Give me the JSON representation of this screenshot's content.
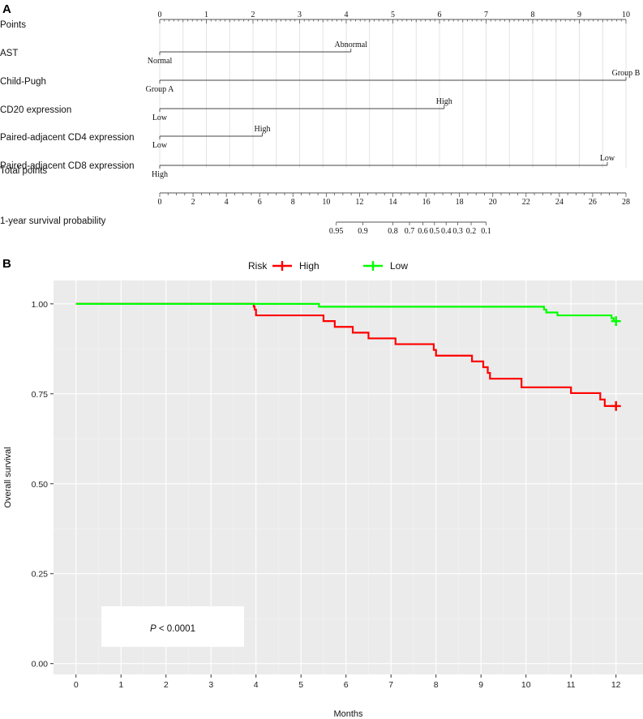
{
  "chart_data": [
    {
      "type": "nomogram",
      "panel": "A",
      "points_scale": {
        "label": "Points",
        "min": 0,
        "max": 10,
        "ticks": [
          0,
          1,
          2,
          3,
          4,
          5,
          6,
          7,
          8,
          9,
          10
        ]
      },
      "variables": [
        {
          "label": "AST",
          "levels": [
            {
              "name": "Normal",
              "points": 0
            },
            {
              "name": "Abnormal",
              "points": 4.1
            }
          ]
        },
        {
          "label": "Child-Pugh",
          "levels": [
            {
              "name": "Group A",
              "points": 0
            },
            {
              "name": "Group B",
              "points": 10
            }
          ]
        },
        {
          "label": "CD20 expression",
          "levels": [
            {
              "name": "Low",
              "points": 0
            },
            {
              "name": "High",
              "points": 6.1
            }
          ]
        },
        {
          "label": "Paired-adjacent CD4 expression",
          "levels": [
            {
              "name": "Low",
              "points": 0
            },
            {
              "name": "High",
              "points": 2.2
            }
          ]
        },
        {
          "label": "Paired-adjacent CD8 expression",
          "levels": [
            {
              "name": "High",
              "points": 0
            },
            {
              "name": "Low",
              "points": 9.6
            }
          ]
        }
      ],
      "total_points": {
        "label": "Total points",
        "min": 0,
        "max": 28,
        "ticks": [
          0,
          2,
          4,
          6,
          8,
          10,
          12,
          14,
          16,
          18,
          20,
          22,
          24,
          26,
          28
        ]
      },
      "survival": {
        "label": "1-year survival probability",
        "ticks": [
          {
            "label": "0.95",
            "total_points": 10.6
          },
          {
            "label": "0.9",
            "total_points": 12.2
          },
          {
            "label": "0.8",
            "total_points": 14.0
          },
          {
            "label": "0.7",
            "total_points": 15.0
          },
          {
            "label": "0.6",
            "total_points": 15.8
          },
          {
            "label": "0.5",
            "total_points": 16.5
          },
          {
            "label": "0.4",
            "total_points": 17.2
          },
          {
            "label": "0.3",
            "total_points": 17.9
          },
          {
            "label": "0.2",
            "total_points": 18.7
          },
          {
            "label": "0.1",
            "total_points": 19.6
          }
        ]
      }
    },
    {
      "type": "line",
      "subtype": "kaplan-meier",
      "panel": "B",
      "xlabel": "Months",
      "ylabel": "Overall survival",
      "xlim": [
        -0.5,
        12.6
      ],
      "ylim": [
        -0.03,
        1.065
      ],
      "xticks": [
        0,
        1,
        2,
        3,
        4,
        5,
        6,
        7,
        8,
        9,
        10,
        11,
        12
      ],
      "yticks": [
        0.0,
        0.25,
        0.5,
        0.75,
        1.0
      ],
      "ytick_labels": [
        "0.00",
        "0.25",
        "0.50",
        "0.75",
        "1.00"
      ],
      "grid": true,
      "legend": {
        "title": "Risk",
        "placement": "top"
      },
      "annotation": {
        "italic": "P",
        "rest": " < 0.0001"
      },
      "series": [
        {
          "name": "High",
          "color": "#ff0000",
          "censor": [
            12.0,
            0.716
          ],
          "steps": [
            [
              0,
              1.0
            ],
            [
              3.95,
              0.992
            ],
            [
              3.97,
              0.984
            ],
            [
              4.0,
              0.968
            ],
            [
              5.5,
              0.952
            ],
            [
              5.75,
              0.936
            ],
            [
              6.15,
              0.92
            ],
            [
              6.5,
              0.904
            ],
            [
              7.1,
              0.888
            ],
            [
              7.95,
              0.872
            ],
            [
              8.0,
              0.856
            ],
            [
              8.8,
              0.84
            ],
            [
              9.05,
              0.824
            ],
            [
              9.15,
              0.808
            ],
            [
              9.2,
              0.792
            ],
            [
              9.9,
              0.768
            ],
            [
              11.0,
              0.752
            ],
            [
              11.65,
              0.734
            ],
            [
              11.75,
              0.716
            ],
            [
              12.0,
              0.716
            ]
          ]
        },
        {
          "name": "Low",
          "color": "#00ff00",
          "censor": [
            12.0,
            0.952
          ],
          "steps": [
            [
              0,
              1.0
            ],
            [
              5.4,
              0.992
            ],
            [
              10.4,
              0.984
            ],
            [
              10.45,
              0.976
            ],
            [
              10.7,
              0.968
            ],
            [
              11.9,
              0.96
            ],
            [
              11.95,
              0.952
            ],
            [
              12.0,
              0.952
            ]
          ]
        }
      ]
    }
  ]
}
